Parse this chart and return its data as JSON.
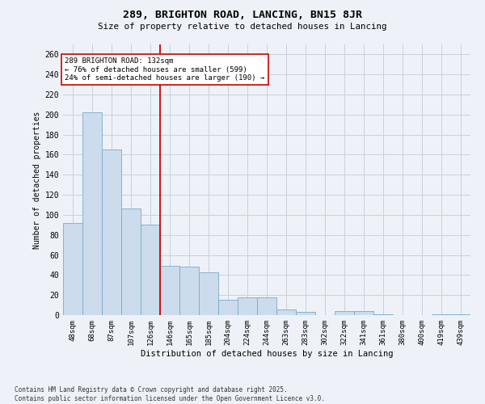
{
  "title1": "289, BRIGHTON ROAD, LANCING, BN15 8JR",
  "title2": "Size of property relative to detached houses in Lancing",
  "xlabel": "Distribution of detached houses by size in Lancing",
  "ylabel": "Number of detached properties",
  "categories": [
    "48sqm",
    "68sqm",
    "87sqm",
    "107sqm",
    "126sqm",
    "146sqm",
    "165sqm",
    "185sqm",
    "204sqm",
    "224sqm",
    "244sqm",
    "263sqm",
    "283sqm",
    "302sqm",
    "322sqm",
    "341sqm",
    "361sqm",
    "380sqm",
    "400sqm",
    "419sqm",
    "439sqm"
  ],
  "values": [
    92,
    202,
    165,
    106,
    90,
    49,
    48,
    43,
    15,
    18,
    18,
    6,
    3,
    0,
    4,
    4,
    1,
    0,
    0,
    1,
    1
  ],
  "bar_color": "#ccdcec",
  "bar_edge_color": "#7aaaca",
  "grid_color": "#c8d0dc",
  "background_color": "#eef2f8",
  "annotation_box_color": "#ffffff",
  "annotation_border_color": "#cc0000",
  "redline_color": "#cc0000",
  "annotation_text_line1": "289 BRIGHTON ROAD: 132sqm",
  "annotation_text_line2": "← 76% of detached houses are smaller (599)",
  "annotation_text_line3": "24% of semi-detached houses are larger (190) →",
  "footer1": "Contains HM Land Registry data © Crown copyright and database right 2025.",
  "footer2": "Contains public sector information licensed under the Open Government Licence v3.0.",
  "ylim": [
    0,
    270
  ],
  "yticks": [
    0,
    20,
    40,
    60,
    80,
    100,
    120,
    140,
    160,
    180,
    200,
    220,
    240,
    260
  ]
}
